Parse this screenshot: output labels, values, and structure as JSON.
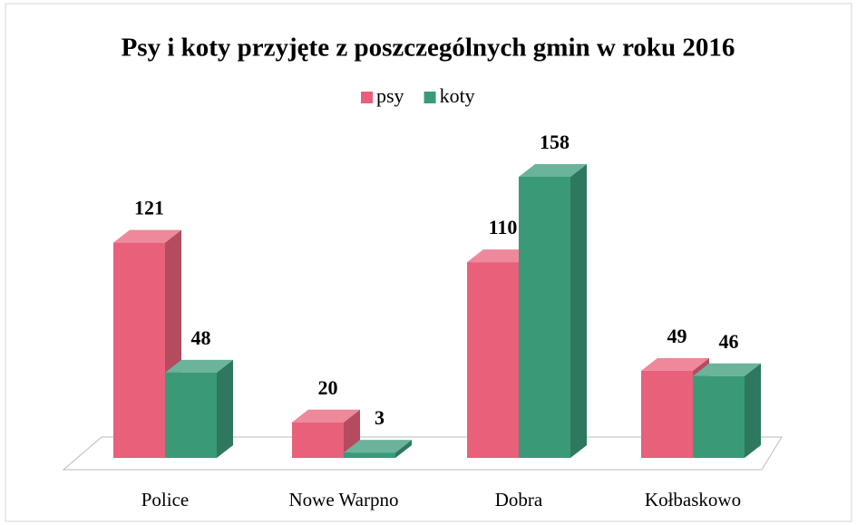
{
  "chart_data": {
    "type": "bar3d",
    "title": "Psy i koty przyjęte z poszczególnych gmin w roku 2016",
    "categories": [
      "Police",
      "Nowe Warpno",
      "Dobra",
      "Kołbaskowo"
    ],
    "series": [
      {
        "name": "psy",
        "color": "#e8607a",
        "values": [
          121,
          20,
          110,
          49
        ]
      },
      {
        "name": "koty",
        "color": "#3a9a78",
        "values": [
          48,
          3,
          158,
          46
        ]
      }
    ],
    "legend": "top"
  }
}
